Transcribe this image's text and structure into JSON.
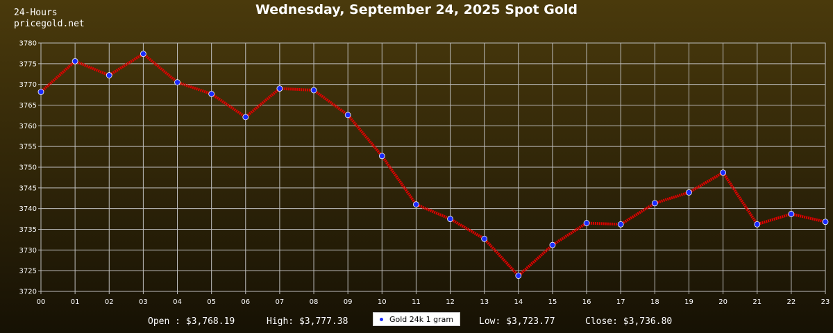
{
  "brand": {
    "line1": "24-Hours",
    "line2": "pricegold.net"
  },
  "chart_data": {
    "type": "line",
    "title": "Wednesday, September 24, 2025 Spot Gold",
    "categories": [
      "00",
      "01",
      "02",
      "03",
      "04",
      "05",
      "06",
      "07",
      "08",
      "09",
      "10",
      "11",
      "12",
      "13",
      "14",
      "15",
      "16",
      "17",
      "18",
      "19",
      "20",
      "21",
      "22",
      "23"
    ],
    "y_ticks": [
      3720,
      3725,
      3730,
      3735,
      3740,
      3745,
      3750,
      3755,
      3760,
      3765,
      3770,
      3775,
      3780
    ],
    "ylim": [
      3720,
      3780
    ],
    "grid": true,
    "series": [
      {
        "name": "Gold 24k 1 gram",
        "line_color": "#e00000",
        "marker_color": "#1a2bff",
        "values": [
          3768.19,
          3775.6,
          3772.2,
          3777.38,
          3770.5,
          3767.7,
          3762.1,
          3769.0,
          3768.6,
          3762.6,
          3752.7,
          3741.0,
          3737.5,
          3732.7,
          3723.77,
          3731.2,
          3736.5,
          3736.2,
          3741.3,
          3743.9,
          3748.7,
          3736.2,
          3738.7,
          3736.8
        ]
      }
    ],
    "legend_position": "bottom-center"
  },
  "footer": {
    "open": "Open : $3,768.19",
    "high": "High: $3,777.38",
    "legend_label": "Gold 24k 1 gram",
    "low": "Low: $3,723.77",
    "close": "Close: $3,736.80"
  },
  "colors": {
    "background_top": "#4a3a0c",
    "background_bottom": "#161104",
    "grid": "#bfbfbf",
    "line": "#e00000",
    "marker": "#1a2bff"
  }
}
